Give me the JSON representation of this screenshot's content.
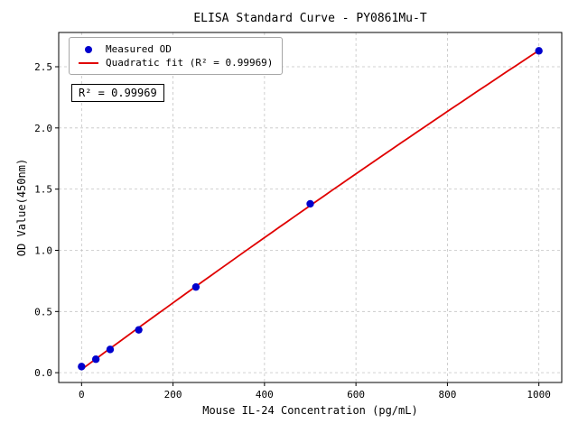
{
  "chart_data": {
    "type": "scatter",
    "title": "ELISA Standard Curve - PY0861Mu-T",
    "xlabel": "Mouse IL-24 Concentration (pg/mL)",
    "ylabel": "OD Value(450nm)",
    "x": [
      0,
      31.25,
      62.5,
      125,
      250,
      500,
      1000
    ],
    "y": [
      0.05,
      0.11,
      0.19,
      0.35,
      0.7,
      1.38,
      2.63
    ],
    "x_ticks": [
      0,
      200,
      400,
      600,
      800,
      1000
    ],
    "y_ticks": [
      0.0,
      0.5,
      1.0,
      1.5,
      2.0,
      2.5
    ],
    "xlim": [
      -50,
      1050
    ],
    "ylim": [
      -0.08,
      2.78
    ],
    "grid": true,
    "fit": "quadratic",
    "annotation": "R² = 0.99969",
    "legend": {
      "position": "upper left",
      "entries": [
        {
          "label": "Measured OD",
          "marker": "dot",
          "color": "#0000cd"
        },
        {
          "label": "Quadratic fit (R² = 0.99969)",
          "marker": "line",
          "color": "#e00000"
        }
      ]
    },
    "colors": {
      "points": "#0000cd",
      "line": "#e00000",
      "grid": "#c3c3c3",
      "frame": "#000000"
    }
  }
}
